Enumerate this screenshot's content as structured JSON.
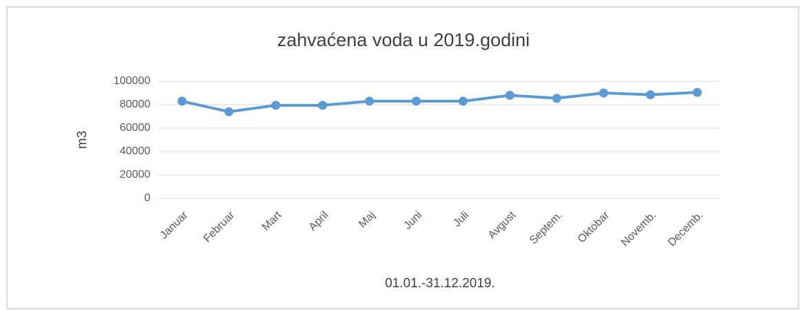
{
  "chart_data": {
    "type": "line",
    "title": "zahvaćena voda u 2019.godini",
    "x_label": "01.01.-31.12.2019.",
    "y_label": "m3",
    "categories": [
      "Januar",
      "Februar",
      "Mart",
      "April",
      "Maj",
      "Juni",
      "Juli",
      "Avgust",
      "Septem.",
      "Oktobar",
      "Novemb.",
      "Decemb."
    ],
    "series": [
      {
        "name": "zahvaćena voda",
        "color": "#5b9bd5",
        "values": [
          83000,
          74000,
          79500,
          79500,
          83000,
          83000,
          83000,
          88000,
          85500,
          90000,
          88500,
          90500
        ]
      }
    ],
    "ylim": [
      0,
      100000
    ],
    "yticks": [
      0,
      20000,
      40000,
      60000,
      80000,
      100000
    ],
    "grid": true
  }
}
